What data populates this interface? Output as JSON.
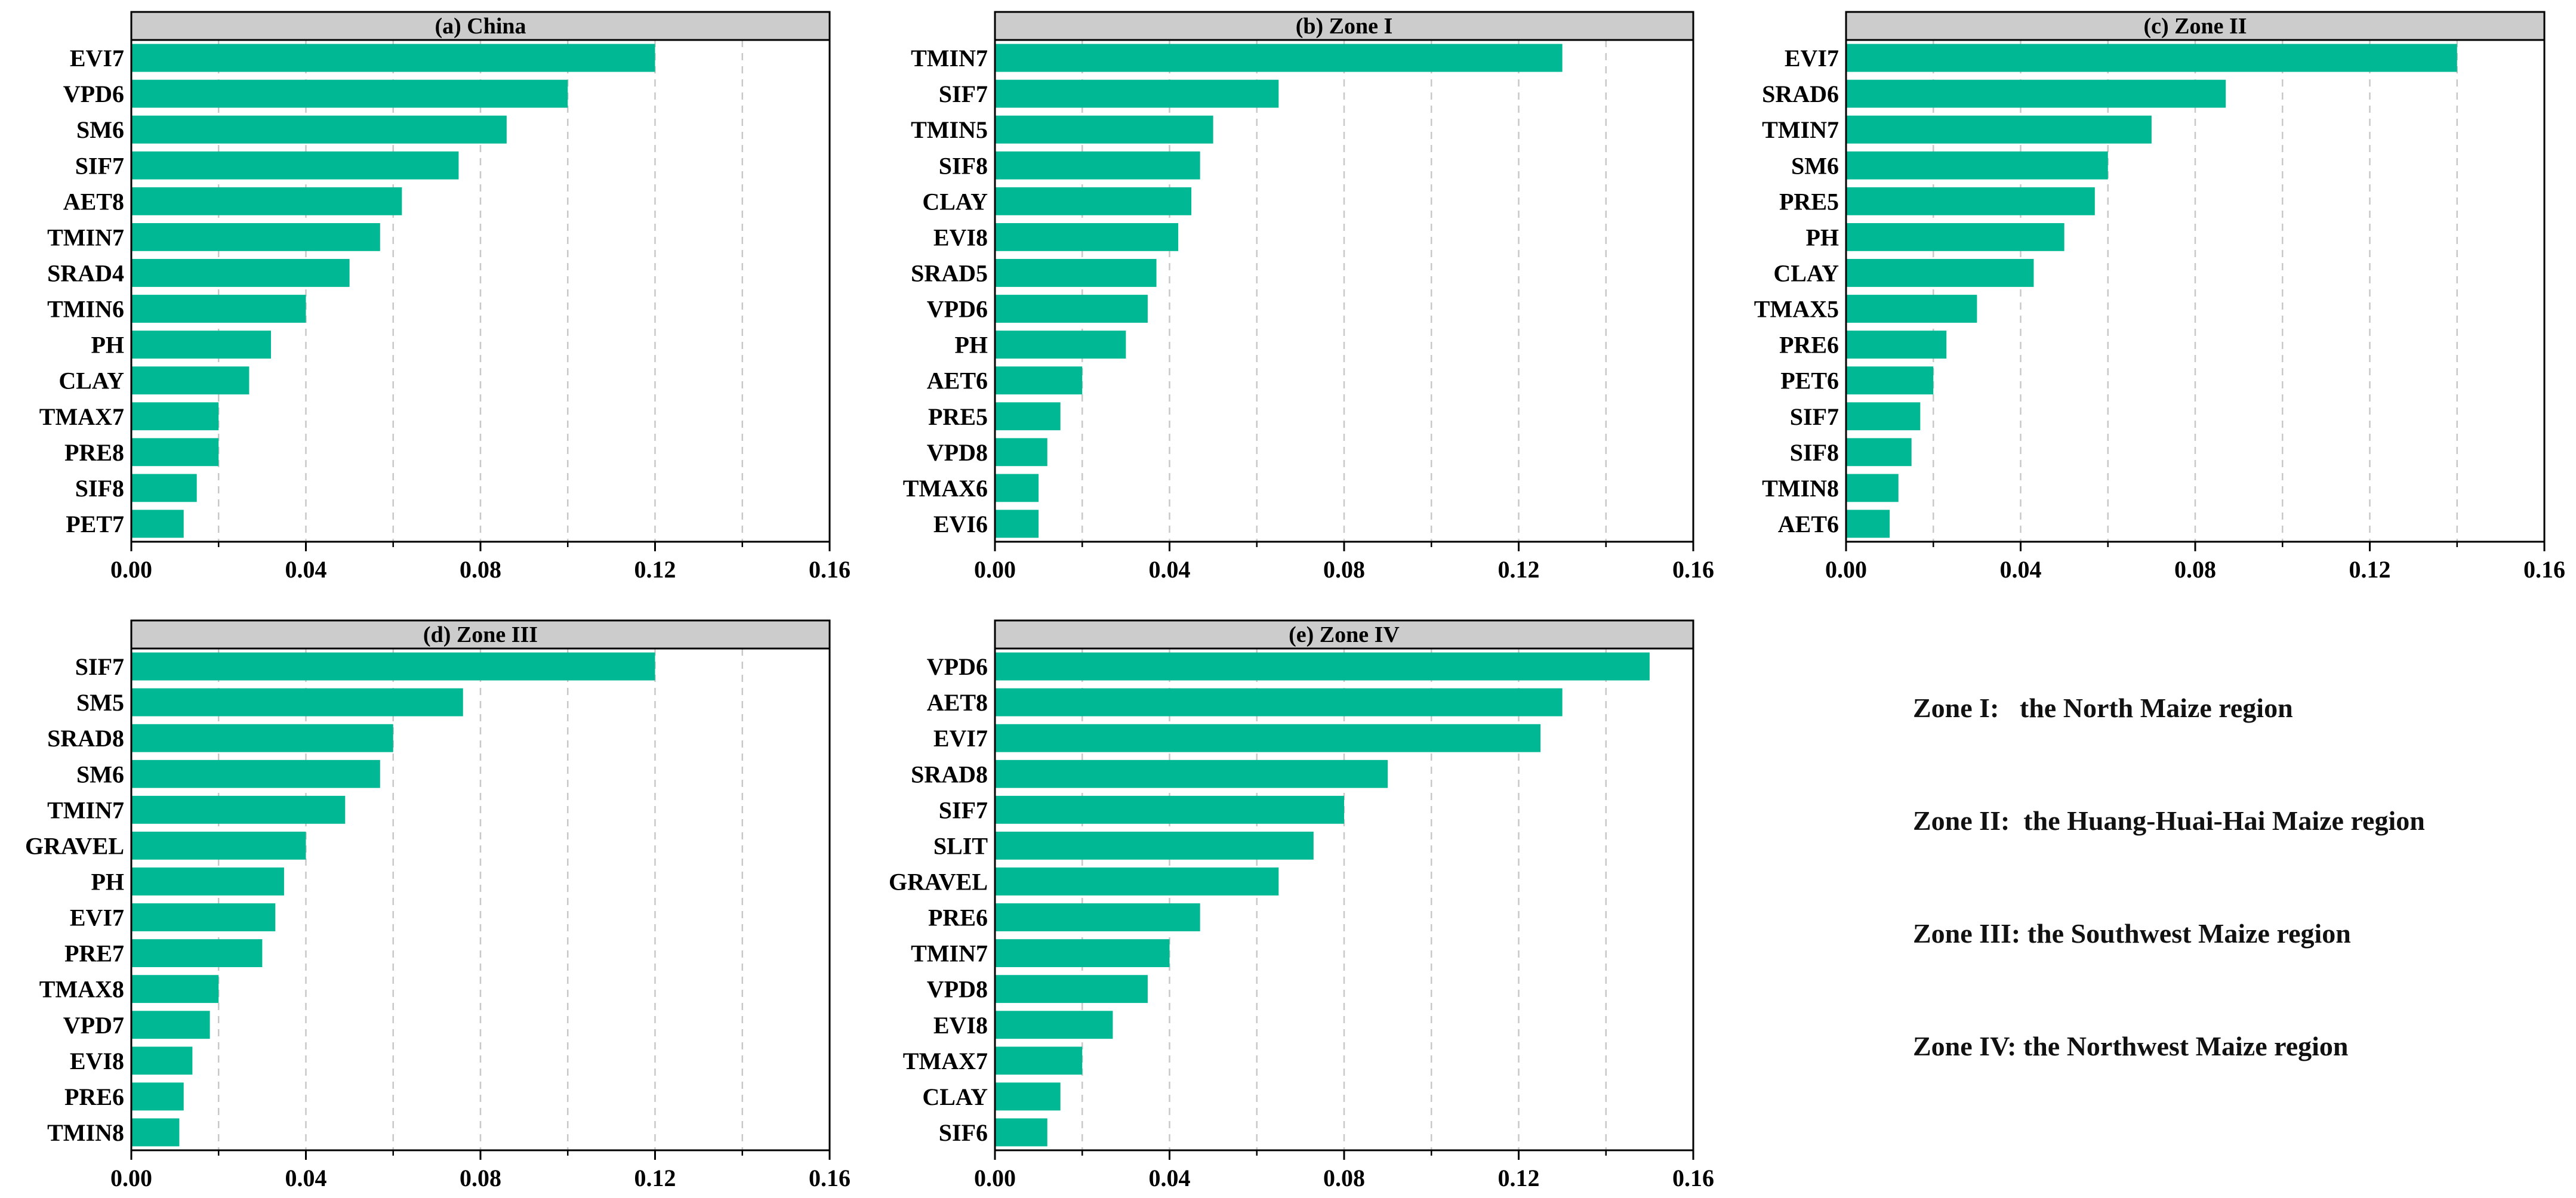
{
  "style": {
    "bar_color": "#00b994",
    "header_color": "#cccccc",
    "grid_color": "#c8c8c8"
  },
  "chart_data": [
    {
      "type": "bar",
      "orientation": "horizontal",
      "title": "(a) China",
      "xlim": [
        0,
        0.16
      ],
      "xticks": [
        "0.00",
        "0.04",
        "0.08",
        "0.12",
        "0.16"
      ],
      "categories": [
        "EVI7",
        "VPD6",
        "SM6",
        "SIF7",
        "AET8",
        "TMIN7",
        "SRAD4",
        "TMIN6",
        "PH",
        "CLAY",
        "TMAX7",
        "PRE8",
        "SIF8",
        "PET7"
      ],
      "values": [
        0.12,
        0.1,
        0.086,
        0.075,
        0.062,
        0.057,
        0.05,
        0.04,
        0.032,
        0.027,
        0.02,
        0.02,
        0.015,
        0.012
      ]
    },
    {
      "type": "bar",
      "orientation": "horizontal",
      "title": "(b) Zone I",
      "xlim": [
        0,
        0.16
      ],
      "xticks": [
        "0.00",
        "0.04",
        "0.08",
        "0.12",
        "0.16"
      ],
      "categories": [
        "TMIN7",
        "SIF7",
        "TMIN5",
        "SIF8",
        "CLAY",
        "EVI8",
        "SRAD5",
        "VPD6",
        "PH",
        "AET6",
        "PRE5",
        "VPD8",
        "TMAX6",
        "EVI6"
      ],
      "values": [
        0.13,
        0.065,
        0.05,
        0.047,
        0.045,
        0.042,
        0.037,
        0.035,
        0.03,
        0.02,
        0.015,
        0.012,
        0.01,
        0.01
      ]
    },
    {
      "type": "bar",
      "orientation": "horizontal",
      "title": "(c) Zone II",
      "xlim": [
        0,
        0.16
      ],
      "xticks": [
        "0.00",
        "0.04",
        "0.08",
        "0.12",
        "0.16"
      ],
      "categories": [
        "EVI7",
        "SRAD6",
        "TMIN7",
        "SM6",
        "PRE5",
        "PH",
        "CLAY",
        "TMAX5",
        "PRE6",
        "PET6",
        "SIF7",
        "SIF8",
        "TMIN8",
        "AET6"
      ],
      "values": [
        0.14,
        0.087,
        0.07,
        0.06,
        0.057,
        0.05,
        0.043,
        0.03,
        0.023,
        0.02,
        0.017,
        0.015,
        0.012,
        0.01
      ]
    },
    {
      "type": "bar",
      "orientation": "horizontal",
      "title": "(d) Zone III",
      "xlim": [
        0,
        0.16
      ],
      "xticks": [
        "0.00",
        "0.04",
        "0.08",
        "0.12",
        "0.16"
      ],
      "categories": [
        "SIF7",
        "SM5",
        "SRAD8",
        "SM6",
        "TMIN7",
        "GRAVEL",
        "PH",
        "EVI7",
        "PRE7",
        "TMAX8",
        "VPD7",
        "EVI8",
        "PRE6",
        "TMIN8"
      ],
      "values": [
        0.12,
        0.076,
        0.06,
        0.057,
        0.049,
        0.04,
        0.035,
        0.033,
        0.03,
        0.02,
        0.018,
        0.014,
        0.012,
        0.011
      ]
    },
    {
      "type": "bar",
      "orientation": "horizontal",
      "title": "(e) Zone IV",
      "xlim": [
        0,
        0.16
      ],
      "xticks": [
        "0.00",
        "0.04",
        "0.08",
        "0.12",
        "0.16"
      ],
      "categories": [
        "VPD6",
        "AET8",
        "EVI7",
        "SRAD8",
        "SIF7",
        "SLIT",
        "GRAVEL",
        "PRE6",
        "TMIN7",
        "VPD8",
        "EVI8",
        "TMAX7",
        "CLAY",
        "SIF6"
      ],
      "values": [
        0.15,
        0.13,
        0.125,
        0.09,
        0.08,
        0.073,
        0.065,
        0.047,
        0.04,
        0.035,
        0.027,
        0.02,
        0.015,
        0.012
      ]
    }
  ],
  "legend": {
    "zone1": "Zone I:   the North Maize region",
    "zone2": "Zone II:  the Huang-Huai-Hai Maize region",
    "zone3": "Zone III: the Southwest Maize region",
    "zone4": "Zone IV: the Northwest Maize region"
  }
}
